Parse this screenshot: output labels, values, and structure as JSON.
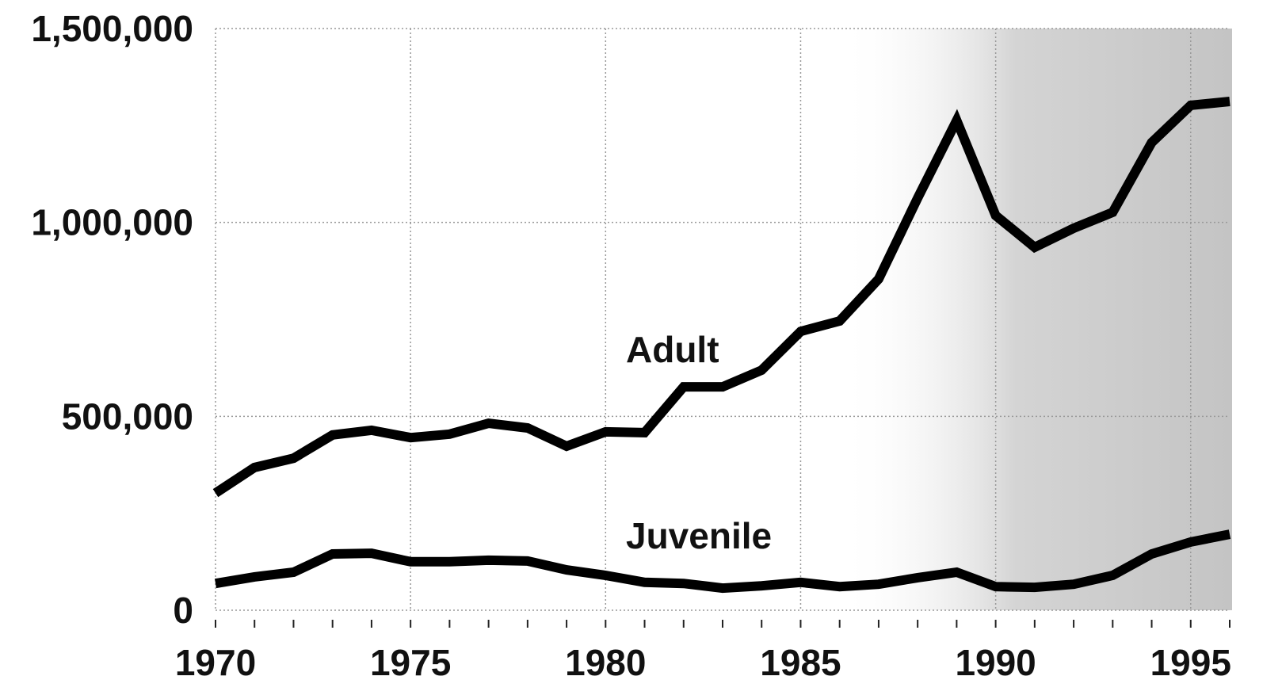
{
  "chart_data": {
    "type": "line",
    "x": [
      1970,
      1971,
      1972,
      1973,
      1974,
      1975,
      1976,
      1977,
      1978,
      1979,
      1980,
      1981,
      1982,
      1983,
      1984,
      1985,
      1986,
      1987,
      1988,
      1989,
      1990,
      1991,
      1992,
      1993,
      1994,
      1995,
      1996
    ],
    "series": [
      {
        "name": "Adult",
        "color": "#000000",
        "values": [
          302000,
          368000,
          392000,
          452000,
          464000,
          445000,
          454000,
          482000,
          470000,
          423000,
          460000,
          458000,
          576000,
          576000,
          619000,
          719000,
          746000,
          854000,
          1063000,
          1263000,
          1018000,
          936000,
          985000,
          1026000,
          1206000,
          1302000,
          1312000
        ]
      },
      {
        "name": "Juvenile",
        "color": "#000000",
        "values": [
          69000,
          86000,
          98000,
          145000,
          147000,
          125000,
          125000,
          129000,
          127000,
          104000,
          90000,
          72000,
          69000,
          57000,
          63000,
          72000,
          61000,
          67000,
          84000,
          98000,
          61000,
          59000,
          67000,
          90000,
          145000,
          176000,
          196000
        ]
      }
    ],
    "xlim": [
      1970,
      1996
    ],
    "xticks": [
      1970,
      1975,
      1980,
      1985,
      1990,
      1995
    ],
    "ylim": [
      0,
      1500000
    ],
    "yticks": [
      0,
      {
        "value": 500000,
        "label": "500,000"
      },
      {
        "value": 1000000,
        "label": "1,000,000"
      },
      {
        "value": 1500000,
        "label": "1,500,000"
      }
    ],
    "grid": true
  }
}
